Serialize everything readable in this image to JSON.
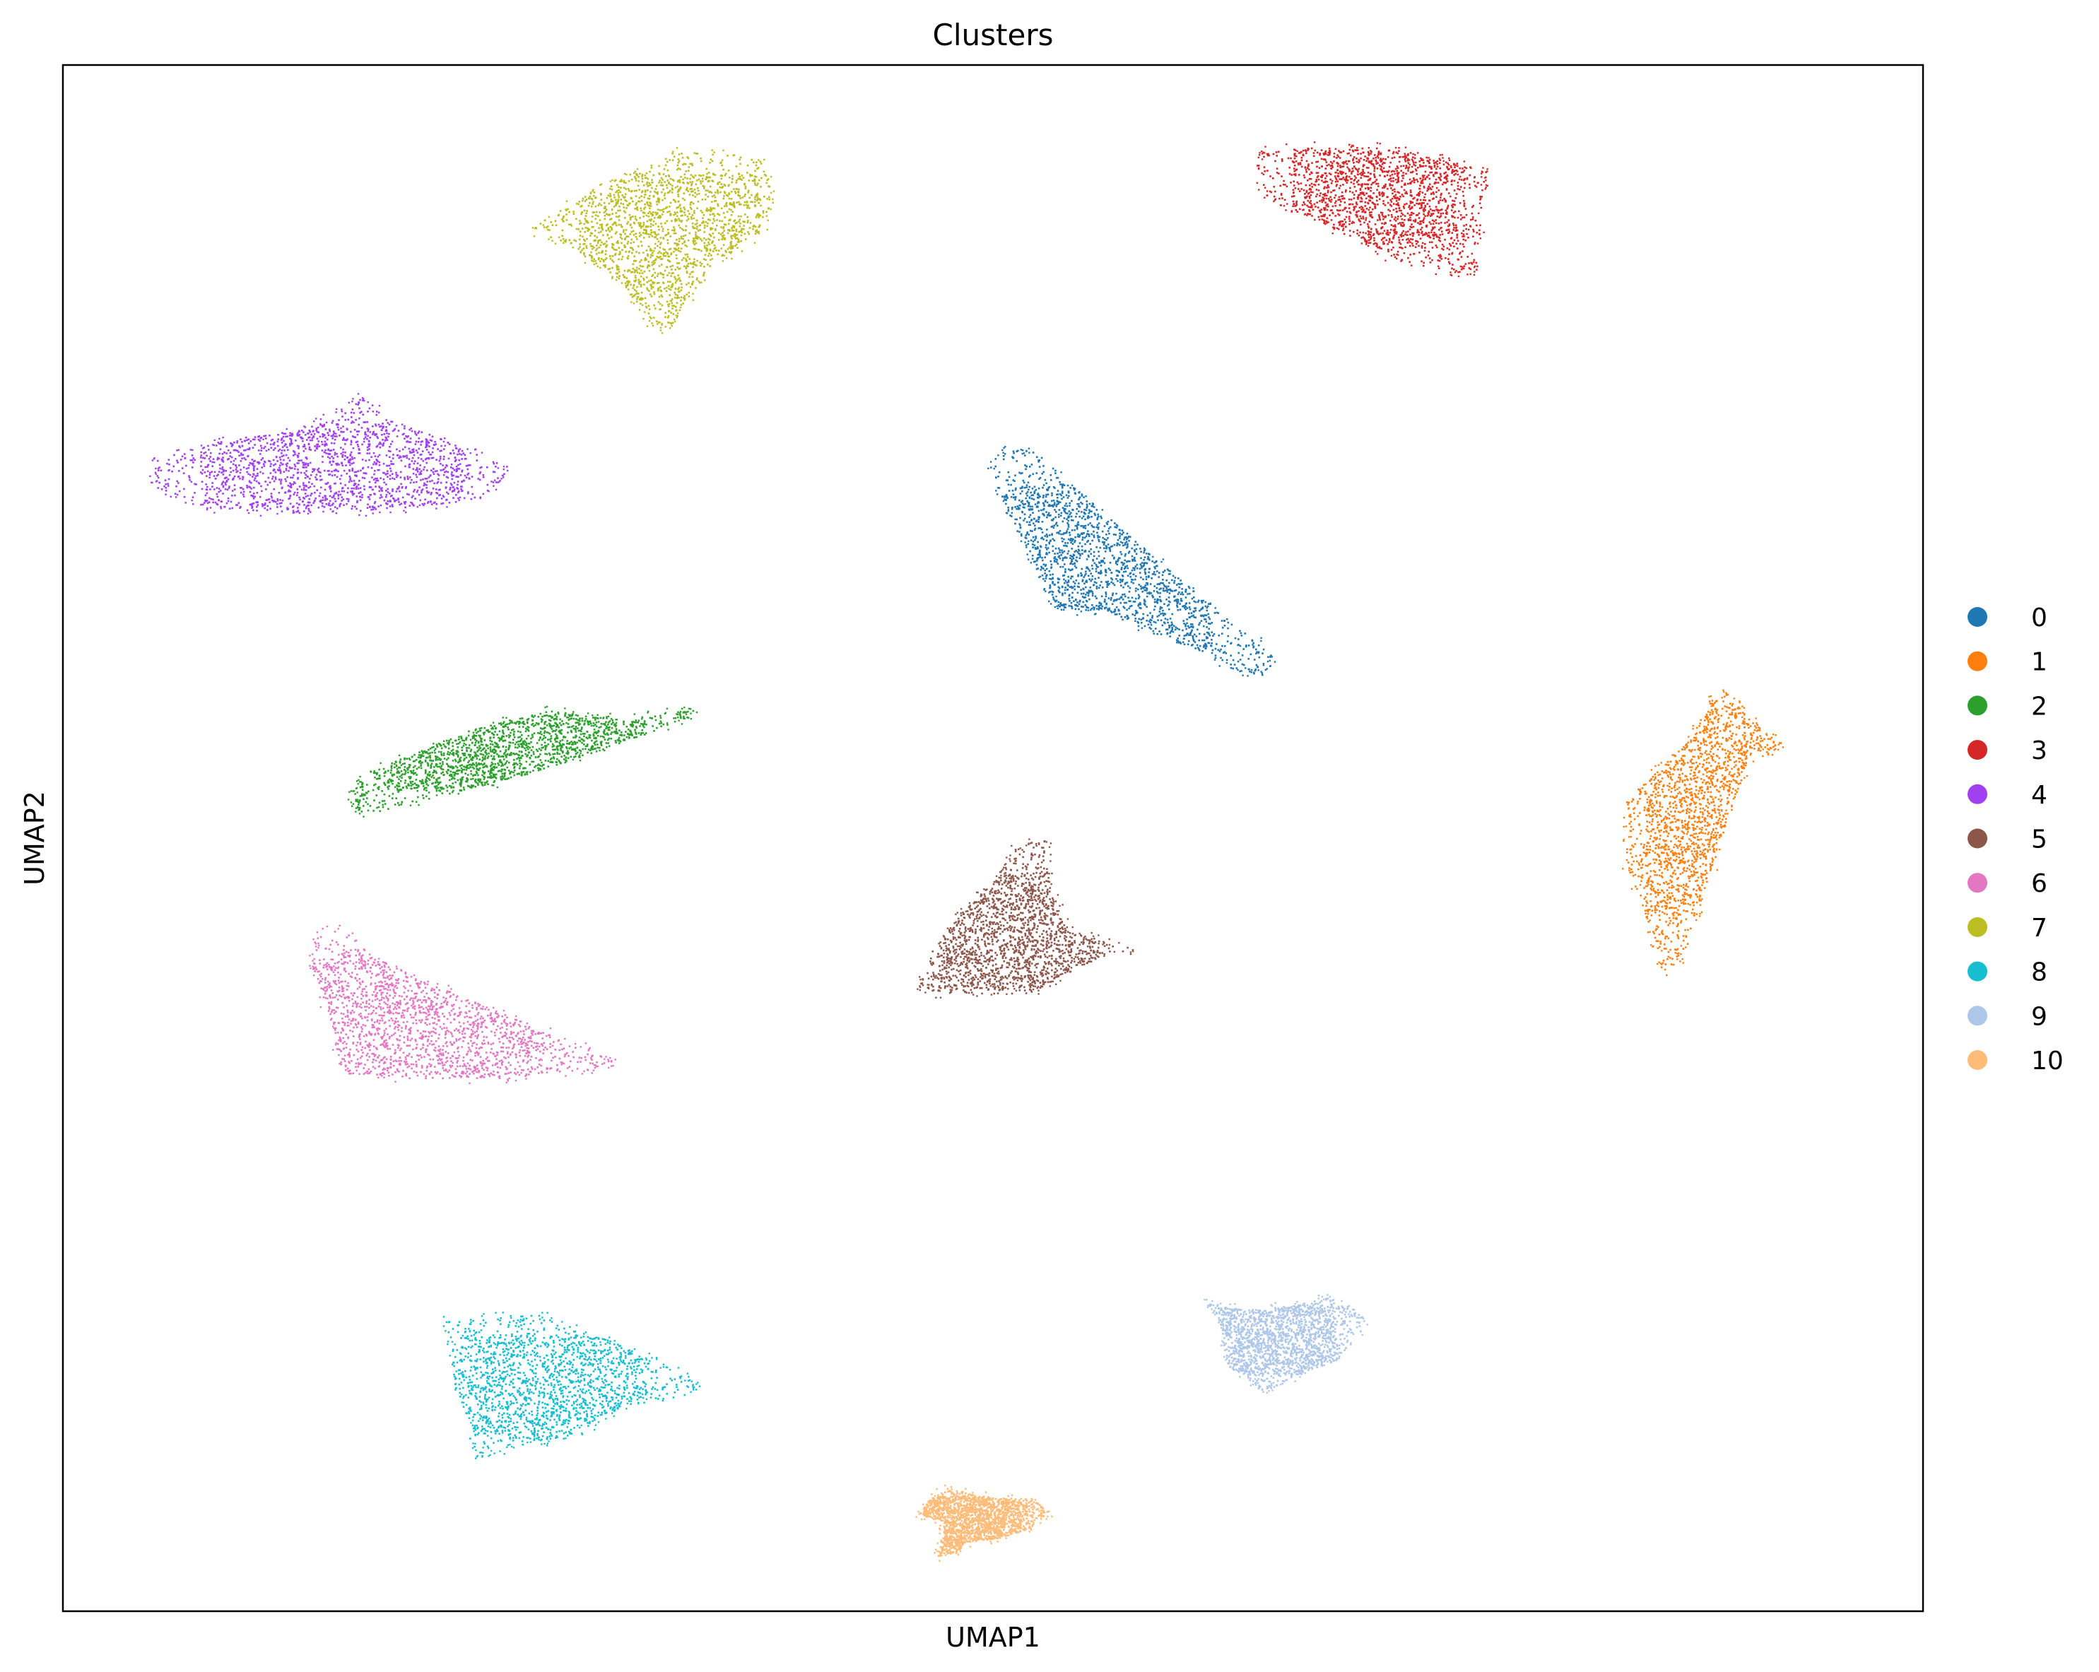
{
  "chart_data": {
    "type": "scatter",
    "title": "Clusters",
    "xlabel": "UMAP1",
    "ylabel": "UMAP2",
    "xlim": [
      0,
      100
    ],
    "ylim": [
      0,
      100
    ],
    "grid": false,
    "ticks": false,
    "legend_position": "right",
    "marker": "small dots",
    "clusters": [
      {
        "name": "0",
        "color": "#1f77b4",
        "shape": [
          [
            50.3,
            75.0
          ],
          [
            52.0,
            75.3
          ],
          [
            59.0,
            67.8
          ],
          [
            65.0,
            61.8
          ],
          [
            64.5,
            60.6
          ],
          [
            63.2,
            60.8
          ],
          [
            55.8,
            64.8
          ],
          [
            53.5,
            64.8
          ],
          [
            52.8,
            66.5
          ],
          [
            51.2,
            70.0
          ],
          [
            49.8,
            74.0
          ]
        ]
      },
      {
        "name": "1",
        "color": "#ff7f0e",
        "shape": [
          [
            88.5,
            59.0
          ],
          [
            89.5,
            59.5
          ],
          [
            90.5,
            58.0
          ],
          [
            92.3,
            56.2
          ],
          [
            92.0,
            55.5
          ],
          [
            90.8,
            55.8
          ],
          [
            88.0,
            46.0
          ],
          [
            87.0,
            42.0
          ],
          [
            86.0,
            41.5
          ],
          [
            85.5,
            43.5
          ],
          [
            84.0,
            48.5
          ],
          [
            84.0,
            52.5
          ],
          [
            87.5,
            56.5
          ]
        ]
      },
      {
        "name": "2",
        "color": "#2ca02c",
        "shape": [
          [
            21.8,
            57.0
          ],
          [
            26.0,
            58.3
          ],
          [
            30.0,
            57.7
          ],
          [
            34.0,
            58.4
          ],
          [
            33.0,
            57.5
          ],
          [
            26.0,
            54.5
          ],
          [
            16.0,
            51.5
          ],
          [
            15.5,
            53.0
          ],
          [
            16.8,
            54.5
          ]
        ]
      },
      {
        "name": "3",
        "color": "#d62728",
        "shape": [
          [
            64.5,
            94.5
          ],
          [
            69.0,
            95.0
          ],
          [
            73.0,
            94.3
          ],
          [
            76.5,
            93.3
          ],
          [
            76.3,
            92.2
          ],
          [
            76.0,
            86.8
          ],
          [
            74.8,
            86.5
          ],
          [
            72.0,
            87.2
          ],
          [
            67.0,
            90.2
          ],
          [
            64.5,
            91.5
          ],
          [
            64.2,
            93.5
          ]
        ]
      },
      {
        "name": "4",
        "color": "#a040f0",
        "shape": [
          [
            5.0,
            74.5
          ],
          [
            8.5,
            75.8
          ],
          [
            13.0,
            76.5
          ],
          [
            16.0,
            78.5
          ],
          [
            18.0,
            77.0
          ],
          [
            22.0,
            75.0
          ],
          [
            24.0,
            74.0
          ],
          [
            22.5,
            72.0
          ],
          [
            19.0,
            71.5
          ],
          [
            14.0,
            71.0
          ],
          [
            8.0,
            71.3
          ],
          [
            4.8,
            72.8
          ]
        ]
      },
      {
        "name": "5",
        "color": "#8c564b",
        "shape": [
          [
            51.2,
            49.5
          ],
          [
            52.8,
            50.0
          ],
          [
            53.0,
            47.0
          ],
          [
            54.0,
            44.0
          ],
          [
            58.0,
            42.8
          ],
          [
            56.0,
            42.5
          ],
          [
            53.5,
            41.0
          ],
          [
            52.0,
            40.0
          ],
          [
            47.0,
            40.0
          ],
          [
            46.0,
            40.5
          ],
          [
            46.5,
            42.5
          ],
          [
            48.5,
            45.5
          ],
          [
            50.5,
            47.8
          ]
        ]
      },
      {
        "name": "6",
        "color": "#e377c2",
        "shape": [
          [
            13.5,
            43.5
          ],
          [
            15.0,
            44.5
          ],
          [
            16.5,
            42.5
          ],
          [
            21.0,
            40.0
          ],
          [
            26.0,
            37.5
          ],
          [
            29.8,
            35.5
          ],
          [
            28.0,
            35.0
          ],
          [
            24.0,
            34.5
          ],
          [
            18.0,
            34.5
          ],
          [
            15.0,
            34.8
          ],
          [
            14.5,
            38.0
          ],
          [
            13.4,
            41.5
          ]
        ]
      },
      {
        "name": "7",
        "color": "#bcbd22",
        "shape": [
          [
            25.0,
            89.5
          ],
          [
            28.5,
            92.0
          ],
          [
            33.0,
            94.5
          ],
          [
            37.5,
            94.0
          ],
          [
            38.0,
            92.0
          ],
          [
            37.8,
            89.5
          ],
          [
            36.0,
            88.0
          ],
          [
            35.0,
            87.5
          ],
          [
            32.8,
            83.5
          ],
          [
            32.0,
            82.8
          ],
          [
            31.0,
            84.5
          ],
          [
            29.5,
            86.5
          ],
          [
            27.0,
            88.5
          ]
        ]
      },
      {
        "name": "8",
        "color": "#17becf",
        "shape": [
          [
            20.5,
            18.8
          ],
          [
            25.5,
            19.2
          ],
          [
            29.5,
            17.5
          ],
          [
            32.5,
            15.8
          ],
          [
            34.0,
            14.8
          ],
          [
            33.5,
            14.0
          ],
          [
            30.0,
            13.3
          ],
          [
            27.5,
            11.5
          ],
          [
            23.5,
            10.5
          ],
          [
            22.0,
            10.2
          ],
          [
            22.0,
            12.0
          ],
          [
            21.0,
            14.5
          ],
          [
            20.8,
            17.0
          ]
        ]
      },
      {
        "name": "9",
        "color": "#aec7e8",
        "shape": [
          [
            61.5,
            20.0
          ],
          [
            63.5,
            19.5
          ],
          [
            66.0,
            19.8
          ],
          [
            68.0,
            20.3
          ],
          [
            70.0,
            19.0
          ],
          [
            68.5,
            16.3
          ],
          [
            66.0,
            15.2
          ],
          [
            64.8,
            14.3
          ],
          [
            64.0,
            14.8
          ],
          [
            62.5,
            16.0
          ],
          [
            62.2,
            18.5
          ]
        ]
      },
      {
        "name": "10",
        "color": "#ffbb78",
        "shape": [
          [
            46.5,
            7.2
          ],
          [
            47.5,
            8.0
          ],
          [
            49.5,
            7.4
          ],
          [
            52.0,
            7.3
          ],
          [
            53.0,
            6.5
          ],
          [
            52.0,
            5.4
          ],
          [
            50.0,
            4.7
          ],
          [
            48.5,
            4.5
          ],
          [
            48.0,
            3.8
          ],
          [
            47.0,
            3.6
          ],
          [
            47.3,
            4.8
          ],
          [
            47.3,
            5.8
          ],
          [
            46.0,
            6.3
          ]
        ]
      }
    ]
  }
}
